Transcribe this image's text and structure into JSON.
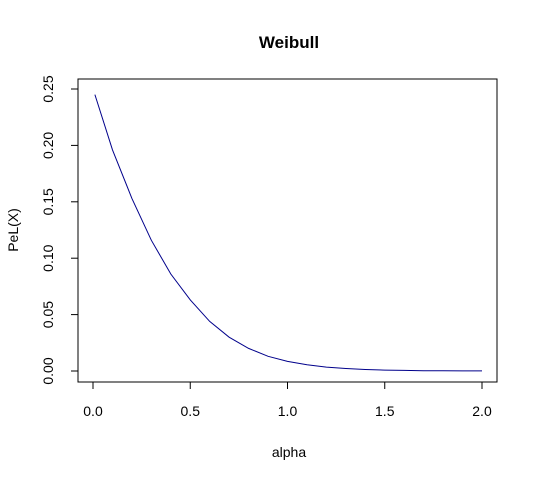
{
  "chart_data": {
    "type": "line",
    "title": "Weibull",
    "xlabel": "alpha",
    "ylabel": "PeL(X)",
    "xlim": [
      0.0,
      2.0
    ],
    "ylim": [
      0.0,
      0.25
    ],
    "x_ticks": [
      "0.0",
      "0.5",
      "1.0",
      "1.5",
      "2.0"
    ],
    "y_ticks": [
      "0.00",
      "0.05",
      "0.10",
      "0.15",
      "0.20",
      "0.25"
    ],
    "grid": false,
    "series": [
      {
        "color": "#00008b",
        "x": [
          0.01,
          0.1,
          0.2,
          0.3,
          0.4,
          0.5,
          0.6,
          0.7,
          0.8,
          0.9,
          1.0,
          1.1,
          1.2,
          1.3,
          1.4,
          1.5,
          1.6,
          1.7,
          1.8,
          1.9,
          2.0
        ],
        "y": [
          0.245,
          0.196,
          0.153,
          0.116,
          0.086,
          0.063,
          0.044,
          0.03,
          0.02,
          0.013,
          0.0085,
          0.0055,
          0.0035,
          0.0022,
          0.0013,
          0.0008,
          0.0005,
          0.0003,
          0.0002,
          0.0001,
          0.0001
        ]
      }
    ]
  }
}
